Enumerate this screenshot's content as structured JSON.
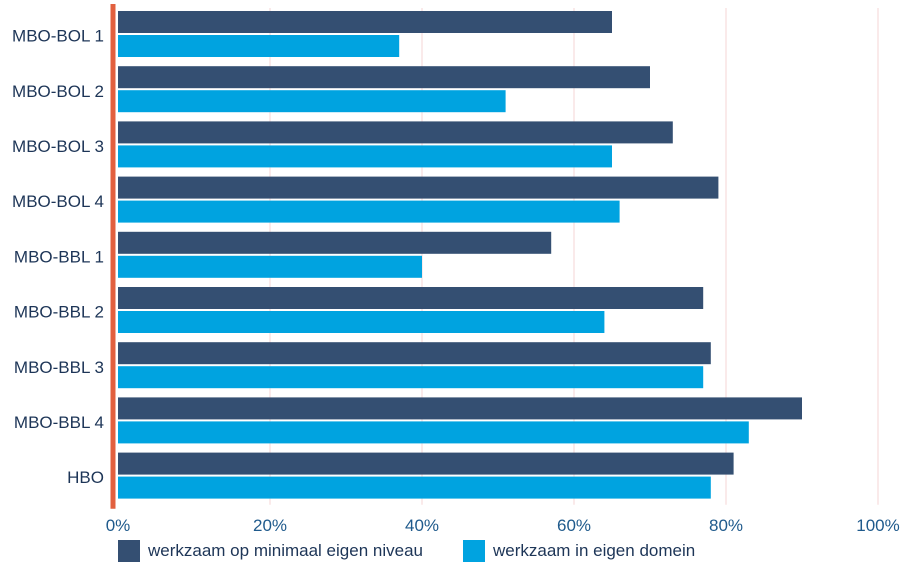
{
  "chart_data": {
    "type": "bar",
    "orientation": "horizontal",
    "categories": [
      "MBO-BOL 1",
      "MBO-BOL 2",
      "MBO-BOL 3",
      "MBO-BOL 4",
      "MBO-BBL 1",
      "MBO-BBL 2",
      "MBO-BBL 3",
      "MBO-BBL 4",
      "HBO"
    ],
    "series": [
      {
        "name": "werkzaam op minimaal eigen niveau",
        "color": "#344f72",
        "values": [
          65,
          70,
          73,
          79,
          57,
          77,
          78,
          90,
          81
        ]
      },
      {
        "name": "werkzaam in eigen domein",
        "color": "#00a3e0",
        "values": [
          37,
          51,
          65,
          66,
          40,
          64,
          77,
          83,
          78
        ]
      }
    ],
    "xlim": [
      0,
      100
    ],
    "x_ticks": [
      "0%",
      "20%",
      "40%",
      "60%",
      "80%",
      "100%"
    ],
    "grid": true,
    "legend_position": "bottom-left",
    "axis_color": "#e2603f",
    "grid_color": "#f6d5d5"
  }
}
